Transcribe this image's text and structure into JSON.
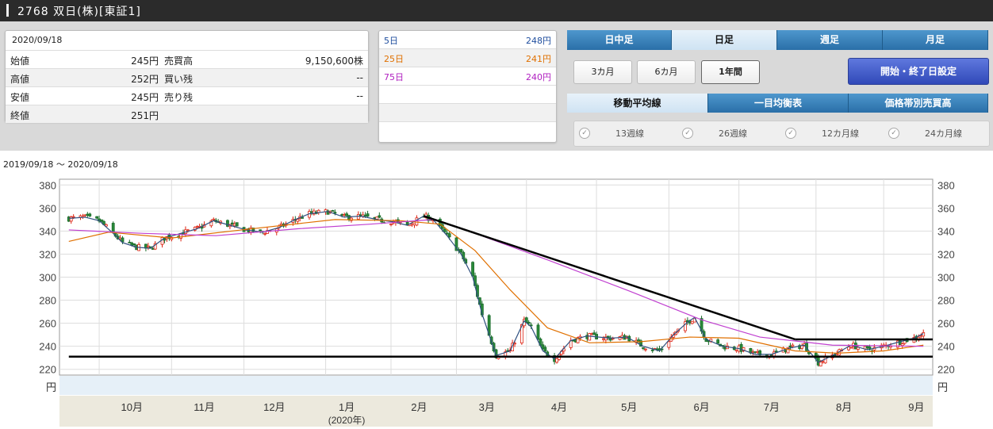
{
  "header": {
    "title": "2768 双日(株)[東証1]"
  },
  "quote": {
    "date": "2020/09/18",
    "rows": [
      {
        "l1": "始値",
        "v1": "245円",
        "l2": "売買高",
        "v2": "9,150,600株"
      },
      {
        "l1": "高値",
        "v1": "252円",
        "l2": "買い残",
        "v2": "--"
      },
      {
        "l1": "安値",
        "v1": "245円",
        "l2": "売り残",
        "v2": "--"
      },
      {
        "l1": "終値",
        "v1": "251円",
        "l2": "",
        "v2": ""
      }
    ]
  },
  "ma_values": [
    {
      "label": "5日",
      "value": "248円",
      "color": "#1f4e9e"
    },
    {
      "label": "25日",
      "value": "241円",
      "color": "#e07000"
    },
    {
      "label": "75日",
      "value": "240円",
      "color": "#b020c0"
    }
  ],
  "tabs": [
    {
      "label": "日中足",
      "selected": false
    },
    {
      "label": "日足",
      "selected": true
    },
    {
      "label": "週足",
      "selected": false
    },
    {
      "label": "月足",
      "selected": false
    }
  ],
  "periods": [
    {
      "label": "3カ月",
      "selected": false
    },
    {
      "label": "6カ月",
      "selected": false
    },
    {
      "label": "1年間",
      "selected": true
    }
  ],
  "date_setting_label": "開始・終了日設定",
  "indicator_tabs": [
    {
      "label": "移動平均線",
      "selected": true
    },
    {
      "label": "一目均衡表",
      "selected": false
    },
    {
      "label": "価格帯別売買高",
      "selected": false
    }
  ],
  "ma_options": [
    {
      "label": "13週線"
    },
    {
      "label": "26週線"
    },
    {
      "label": "12カ月線"
    },
    {
      "label": "24カ月線"
    }
  ],
  "range_label": "2019/09/18 〜 2020/09/18",
  "chart_data": {
    "type": "candlestick",
    "ylim": [
      215,
      385
    ],
    "yticks": [
      220,
      240,
      260,
      280,
      300,
      320,
      340,
      360,
      380
    ],
    "yunit": "円",
    "months": [
      {
        "label": "10月",
        "x": "2019-10-15"
      },
      {
        "label": "11月",
        "x": "2019-11-15"
      },
      {
        "label": "12月",
        "x": "2019-12-15"
      },
      {
        "label": "1月",
        "x": "2020-01-15"
      },
      {
        "label": "2月",
        "x": "2020-02-15"
      },
      {
        "label": "3月",
        "x": "2020-03-15"
      },
      {
        "label": "4月",
        "x": "2020-04-15"
      },
      {
        "label": "5月",
        "x": "2020-05-15"
      },
      {
        "label": "6月",
        "x": "2020-06-15"
      },
      {
        "label": "7月",
        "x": "2020-07-15"
      },
      {
        "label": "8月",
        "x": "2020-08-15"
      },
      {
        "label": "9月",
        "x": "2020-09-15"
      }
    ],
    "year_label": "(2020年)",
    "grid_dates": [
      "2019-10-01",
      "2019-11-01",
      "2019-12-02",
      "2020-01-06",
      "2020-02-03",
      "2020-03-02",
      "2020-04-01",
      "2020-05-01",
      "2020-06-01",
      "2020-07-01",
      "2020-08-03",
      "2020-09-01"
    ],
    "series": [
      {
        "name": "5日",
        "color": "#2f4f7f"
      },
      {
        "name": "25日",
        "color": "#e07000"
      },
      {
        "name": "75日",
        "color": "#c040d0"
      }
    ],
    "closes": [
      {
        "x": "2019-09-18",
        "y": 351
      },
      {
        "x": "2019-09-25",
        "y": 352
      },
      {
        "x": "2019-10-01",
        "y": 349
      },
      {
        "x": "2019-10-07",
        "y": 338
      },
      {
        "x": "2019-10-11",
        "y": 330
      },
      {
        "x": "2019-10-17",
        "y": 326
      },
      {
        "x": "2019-10-23",
        "y": 325
      },
      {
        "x": "2019-10-29",
        "y": 334
      },
      {
        "x": "2019-11-05",
        "y": 338
      },
      {
        "x": "2019-11-12",
        "y": 342
      },
      {
        "x": "2019-11-19",
        "y": 349
      },
      {
        "x": "2019-11-26",
        "y": 345
      },
      {
        "x": "2019-12-03",
        "y": 341
      },
      {
        "x": "2019-12-10",
        "y": 339
      },
      {
        "x": "2019-12-17",
        "y": 343
      },
      {
        "x": "2019-12-24",
        "y": 350
      },
      {
        "x": "2019-12-30",
        "y": 355
      },
      {
        "x": "2020-01-07",
        "y": 357
      },
      {
        "x": "2020-01-14",
        "y": 352
      },
      {
        "x": "2020-01-21",
        "y": 353
      },
      {
        "x": "2020-01-28",
        "y": 350
      },
      {
        "x": "2020-02-04",
        "y": 348
      },
      {
        "x": "2020-02-10",
        "y": 345
      },
      {
        "x": "2020-02-17",
        "y": 353
      },
      {
        "x": "2020-02-21",
        "y": 350
      },
      {
        "x": "2020-02-27",
        "y": 336
      },
      {
        "x": "2020-03-04",
        "y": 320
      },
      {
        "x": "2020-03-09",
        "y": 300
      },
      {
        "x": "2020-03-13",
        "y": 268
      },
      {
        "x": "2020-03-19",
        "y": 232
      },
      {
        "x": "2020-03-25",
        "y": 236
      },
      {
        "x": "2020-03-31",
        "y": 262
      },
      {
        "x": "2020-04-03",
        "y": 257
      },
      {
        "x": "2020-04-08",
        "y": 236
      },
      {
        "x": "2020-04-13",
        "y": 229
      },
      {
        "x": "2020-04-20",
        "y": 245
      },
      {
        "x": "2020-04-27",
        "y": 249
      },
      {
        "x": "2020-05-07",
        "y": 247
      },
      {
        "x": "2020-05-14",
        "y": 248
      },
      {
        "x": "2020-05-21",
        "y": 240
      },
      {
        "x": "2020-05-28",
        "y": 236
      },
      {
        "x": "2020-06-03",
        "y": 250
      },
      {
        "x": "2020-06-09",
        "y": 261
      },
      {
        "x": "2020-06-12",
        "y": 265
      },
      {
        "x": "2020-06-17",
        "y": 246
      },
      {
        "x": "2020-06-24",
        "y": 240
      },
      {
        "x": "2020-07-01",
        "y": 238
      },
      {
        "x": "2020-07-08",
        "y": 233
      },
      {
        "x": "2020-07-15",
        "y": 233
      },
      {
        "x": "2020-07-22",
        "y": 238
      },
      {
        "x": "2020-07-29",
        "y": 241
      },
      {
        "x": "2020-08-04",
        "y": 226
      },
      {
        "x": "2020-08-11",
        "y": 233
      },
      {
        "x": "2020-08-18",
        "y": 241
      },
      {
        "x": "2020-08-25",
        "y": 237
      },
      {
        "x": "2020-09-01",
        "y": 240
      },
      {
        "x": "2020-09-08",
        "y": 244
      },
      {
        "x": "2020-09-14",
        "y": 247
      },
      {
        "x": "2020-09-18",
        "y": 251
      }
    ],
    "ma25": [
      {
        "x": "2019-09-18",
        "y": 331
      },
      {
        "x": "2019-10-05",
        "y": 339
      },
      {
        "x": "2019-11-01",
        "y": 334
      },
      {
        "x": "2019-12-01",
        "y": 341
      },
      {
        "x": "2020-01-10",
        "y": 350
      },
      {
        "x": "2020-02-07",
        "y": 349
      },
      {
        "x": "2020-02-24",
        "y": 346
      },
      {
        "x": "2020-03-10",
        "y": 323
      },
      {
        "x": "2020-03-25",
        "y": 289
      },
      {
        "x": "2020-04-10",
        "y": 256
      },
      {
        "x": "2020-04-28",
        "y": 243
      },
      {
        "x": "2020-05-20",
        "y": 244
      },
      {
        "x": "2020-06-10",
        "y": 248
      },
      {
        "x": "2020-07-01",
        "y": 247
      },
      {
        "x": "2020-07-25",
        "y": 236
      },
      {
        "x": "2020-08-12",
        "y": 234
      },
      {
        "x": "2020-09-01",
        "y": 236
      },
      {
        "x": "2020-09-18",
        "y": 241
      }
    ],
    "ma75": [
      {
        "x": "2019-09-18",
        "y": 341
      },
      {
        "x": "2019-10-20",
        "y": 338
      },
      {
        "x": "2019-11-20",
        "y": 336
      },
      {
        "x": "2019-12-25",
        "y": 342
      },
      {
        "x": "2020-01-25",
        "y": 346
      },
      {
        "x": "2020-02-21",
        "y": 350
      },
      {
        "x": "2020-03-10",
        "y": 338
      },
      {
        "x": "2020-04-10",
        "y": 315
      },
      {
        "x": "2020-05-15",
        "y": 288
      },
      {
        "x": "2020-06-15",
        "y": 263
      },
      {
        "x": "2020-07-10",
        "y": 248
      },
      {
        "x": "2020-08-10",
        "y": 241
      },
      {
        "x": "2020-09-18",
        "y": 240
      }
    ],
    "trendlines": [
      {
        "x1": "2020-02-17",
        "y1": 353,
        "x2": "2020-07-25",
        "y2": 246
      },
      {
        "x1": "2020-07-25",
        "y1": 246,
        "x2": "2020-09-22",
        "y2": 246
      },
      {
        "x1": "2019-09-18",
        "y1": 231,
        "x2": "2020-09-22",
        "y2": 231
      }
    ]
  }
}
